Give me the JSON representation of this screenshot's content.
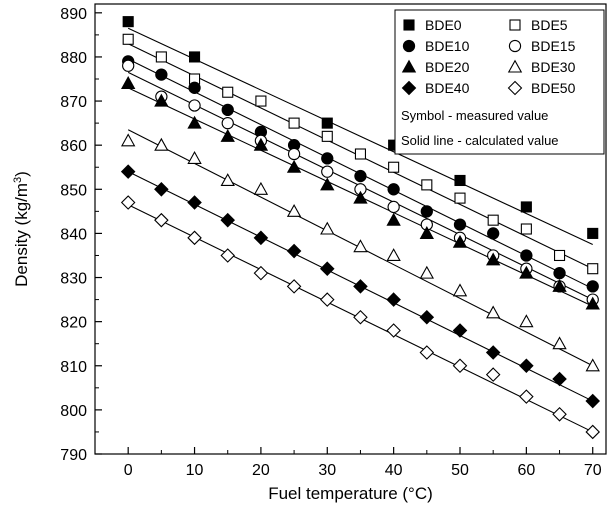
{
  "chart_data": {
    "type": "scatter",
    "title": "",
    "xlabel": "Fuel temperature (°C)",
    "ylabel_main": "Density (kg/m",
    "ylabel_sup": "3",
    "ylabel_close": ")",
    "xlim": [
      -5,
      72
    ],
    "ylim": [
      790,
      892
    ],
    "x_ticks": [
      0,
      10,
      20,
      30,
      40,
      50,
      60,
      70
    ],
    "y_ticks": [
      790,
      800,
      810,
      820,
      830,
      840,
      850,
      860,
      870,
      880,
      890
    ],
    "grid": false,
    "legend_position": "top-right",
    "legend_notes": [
      "Symbol - measured value",
      "Solid line - calculated value"
    ],
    "series": [
      {
        "name": "BDE0",
        "marker": "square",
        "fill": "filled",
        "x": [
          0,
          10,
          30,
          40,
          50,
          60,
          70
        ],
        "y": [
          888,
          880,
          865,
          860,
          852,
          846,
          840
        ],
        "line": {
          "x": [
            0,
            70
          ],
          "y": [
            886.5,
            837.5
          ]
        }
      },
      {
        "name": "BDE5",
        "marker": "square",
        "fill": "open",
        "x": [
          0,
          5,
          10,
          15,
          20,
          25,
          30,
          35,
          40,
          45,
          50,
          55,
          60,
          65,
          70
        ],
        "y": [
          884,
          880,
          875,
          872,
          870,
          865,
          862,
          858,
          855,
          851,
          848,
          843,
          841,
          835,
          832
        ],
        "line": {
          "x": [
            0,
            70
          ],
          "y": [
            883,
            832
          ]
        }
      },
      {
        "name": "BDE10",
        "marker": "circle",
        "fill": "filled",
        "x": [
          0,
          5,
          10,
          15,
          20,
          25,
          30,
          35,
          40,
          45,
          50,
          55,
          60,
          65,
          70
        ],
        "y": [
          879,
          876,
          873,
          868,
          863,
          860,
          857,
          853,
          850,
          845,
          842,
          840,
          835,
          831,
          828
        ],
        "line": {
          "x": [
            0,
            70
          ],
          "y": [
            879.5,
            827.5
          ]
        }
      },
      {
        "name": "BDE15",
        "marker": "circle",
        "fill": "open",
        "x": [
          0,
          5,
          10,
          15,
          20,
          25,
          30,
          35,
          40,
          45,
          50,
          55,
          60,
          65,
          70
        ],
        "y": [
          878,
          871,
          869,
          865,
          861,
          858,
          854,
          850,
          846,
          842,
          839,
          835,
          832,
          828,
          825
        ],
        "line": {
          "x": [
            0,
            70
          ],
          "y": [
            876.5,
            825
          ]
        }
      },
      {
        "name": "BDE20",
        "marker": "triangle",
        "fill": "filled",
        "x": [
          0,
          5,
          10,
          15,
          20,
          25,
          30,
          35,
          40,
          45,
          50,
          55,
          60,
          65,
          70
        ],
        "y": [
          874,
          870,
          865,
          862,
          860,
          855,
          851,
          848,
          843,
          840,
          838,
          834,
          831,
          828,
          824
        ],
        "line": {
          "x": [
            0,
            70
          ],
          "y": [
            873,
            823.5
          ]
        }
      },
      {
        "name": "BDE30",
        "marker": "triangle",
        "fill": "open",
        "x": [
          0,
          5,
          10,
          15,
          20,
          25,
          30,
          35,
          40,
          45,
          50,
          55,
          60,
          65,
          70
        ],
        "y": [
          861,
          860,
          857,
          852,
          850,
          845,
          841,
          837,
          835,
          831,
          827,
          822,
          820,
          815,
          810
        ],
        "line": {
          "x": [
            0,
            70
          ],
          "y": [
            863.5,
            810
          ]
        }
      },
      {
        "name": "BDE40",
        "marker": "diamond",
        "fill": "filled",
        "x": [
          0,
          5,
          10,
          15,
          20,
          25,
          30,
          35,
          40,
          45,
          50,
          55,
          60,
          65,
          70
        ],
        "y": [
          854,
          850,
          847,
          843,
          839,
          836,
          832,
          828,
          825,
          821,
          818,
          813,
          810,
          807,
          802
        ],
        "line": {
          "x": [
            0,
            70
          ],
          "y": [
            854,
            802
          ]
        }
      },
      {
        "name": "BDE50",
        "marker": "diamond",
        "fill": "open",
        "x": [
          0,
          5,
          10,
          15,
          20,
          25,
          30,
          35,
          40,
          45,
          50,
          55,
          60,
          65,
          70
        ],
        "y": [
          847,
          843,
          839,
          835,
          831,
          828,
          825,
          821,
          818,
          813,
          810,
          808,
          803,
          799,
          795
        ],
        "line": {
          "x": [
            0,
            70
          ],
          "y": [
            846.5,
            795
          ]
        }
      }
    ]
  }
}
